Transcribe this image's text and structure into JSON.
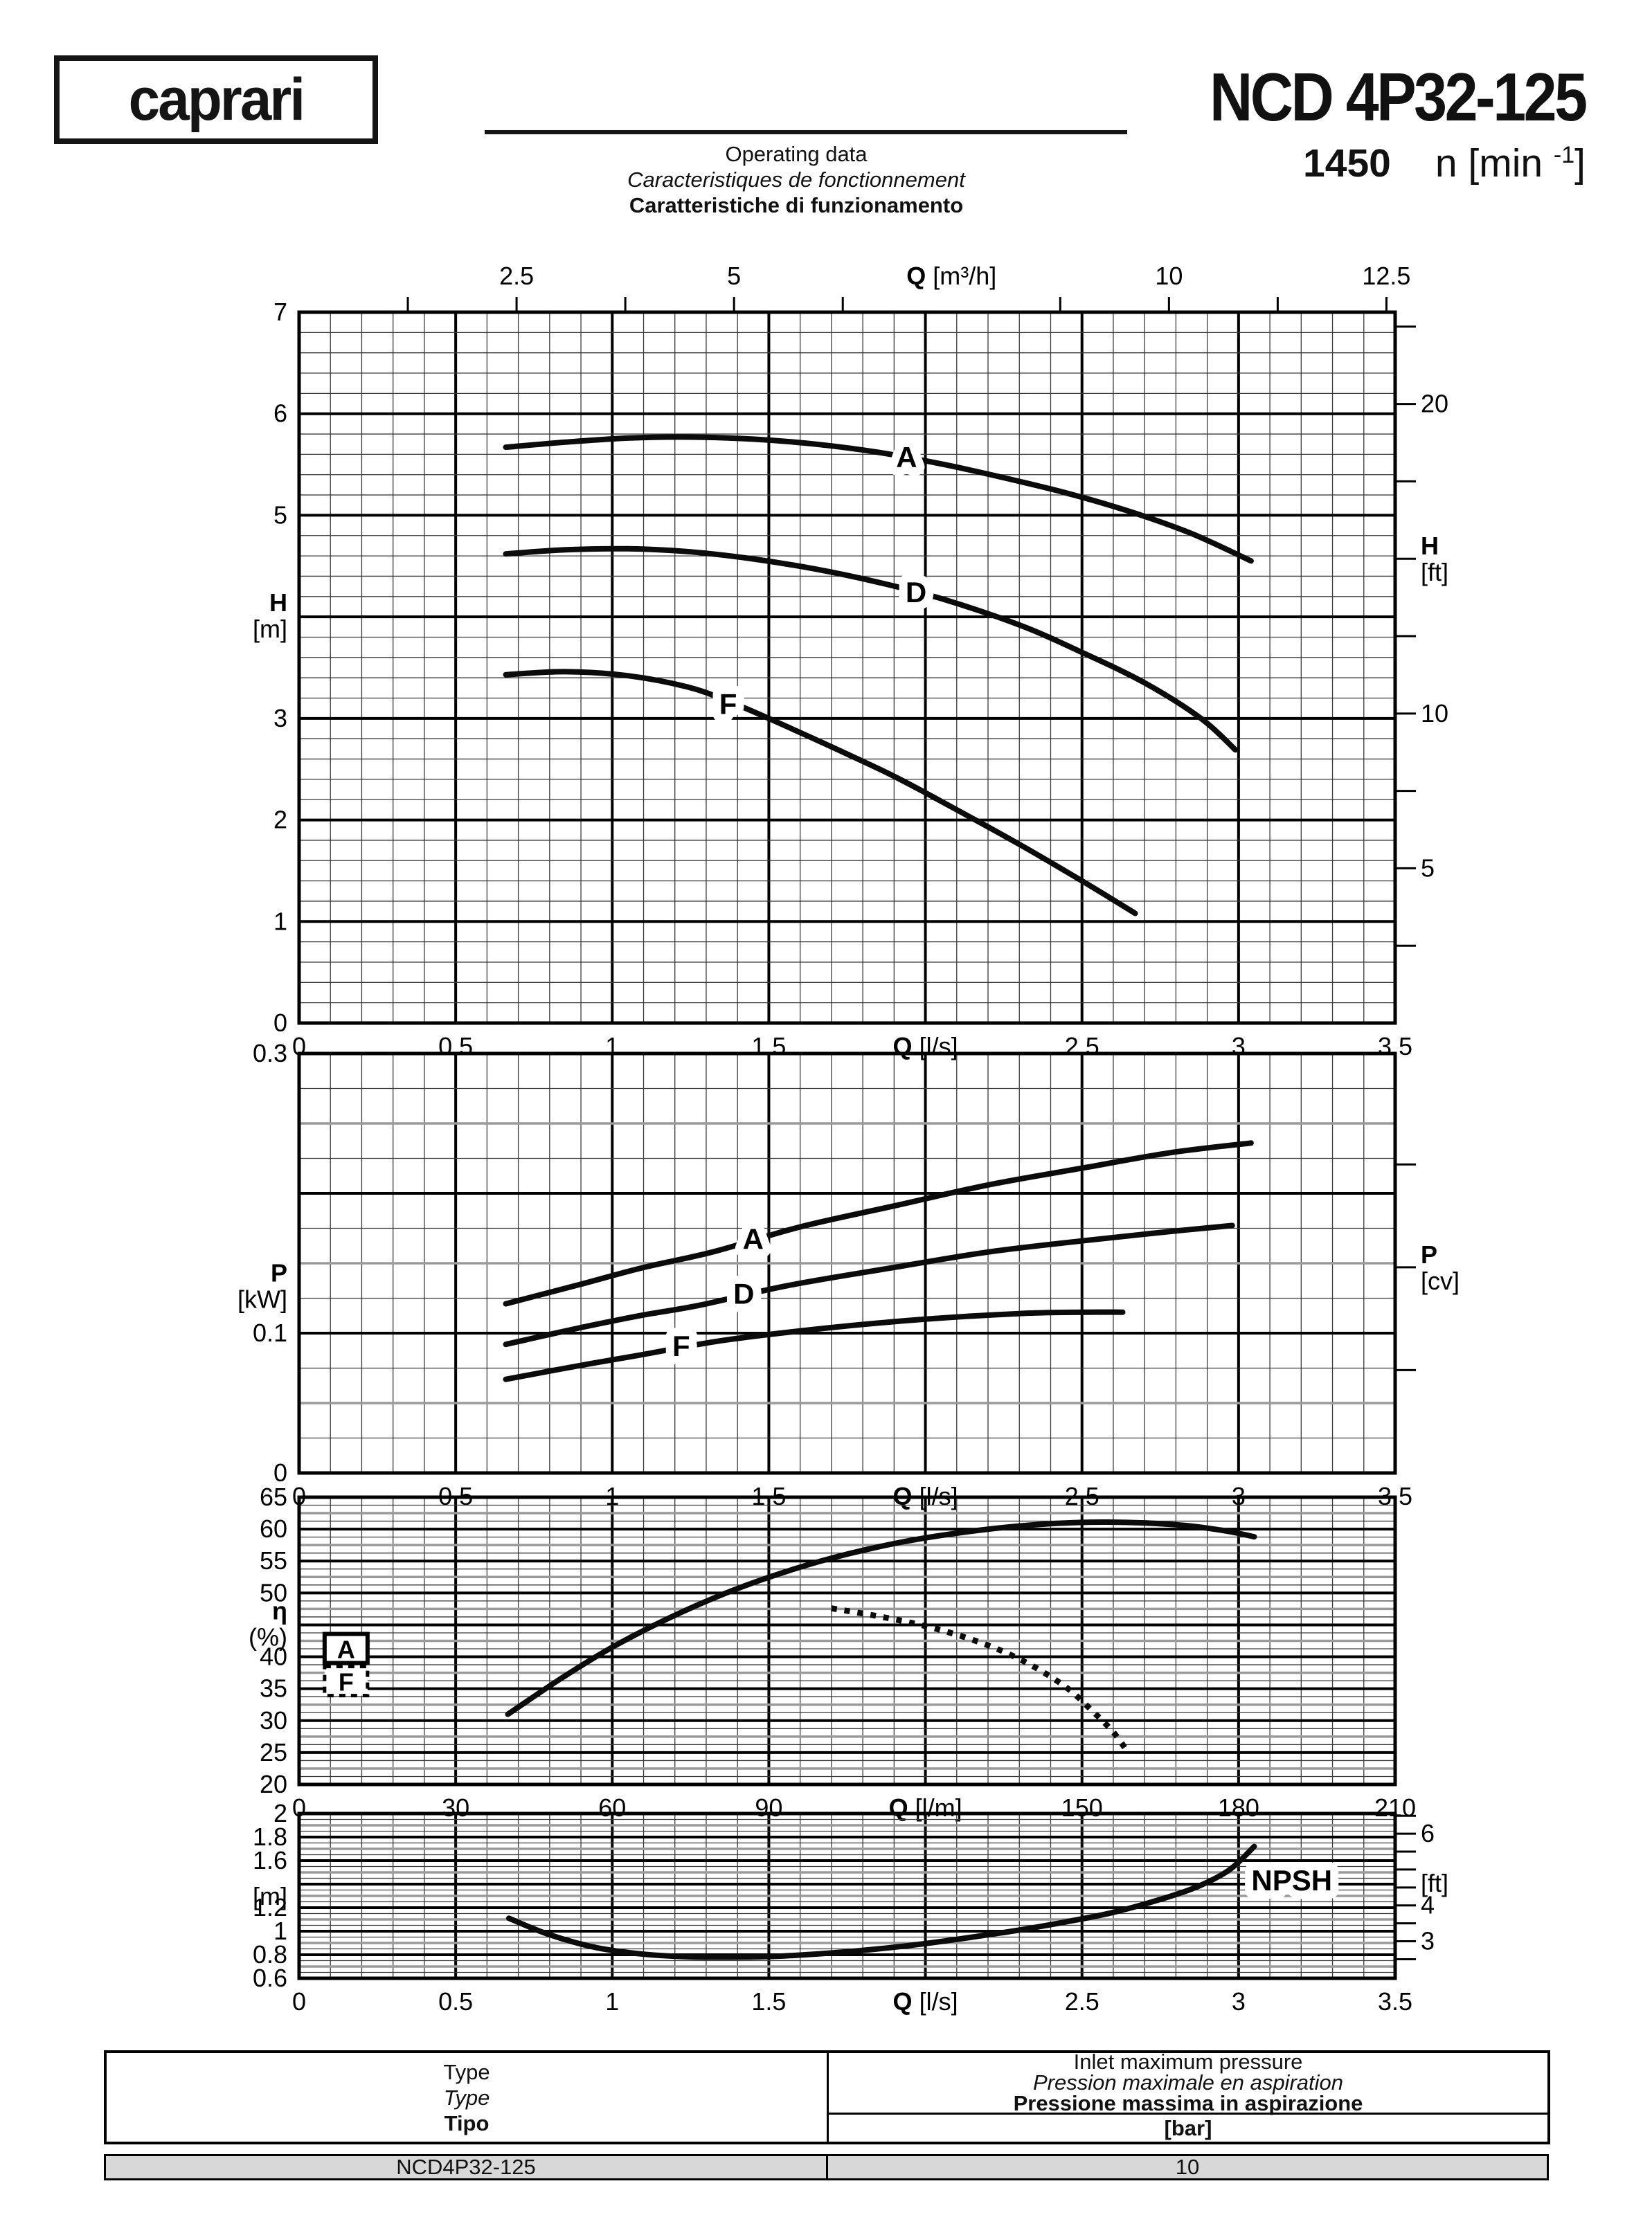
{
  "header": {
    "logo_text": "caprari",
    "title": "NCD 4P32-125",
    "speed_value": "1450",
    "speed_unit": {
      "pre": "n [min ",
      "sup": "-1",
      "post": "]"
    },
    "operating_data": [
      "Operating data",
      "Caracteristiques de fonctionnement",
      "Caratteristiche di funzionamento"
    ]
  },
  "chart_data": [
    {
      "id": "head_flow",
      "type": "line",
      "title": "Head vs flow",
      "x_axis": {
        "min": 0,
        "max": 3.5,
        "labels": [
          {
            "v": 0,
            "t": "0"
          },
          {
            "v": 0.5,
            "t": "0.5"
          },
          {
            "v": 1,
            "t": "1"
          },
          {
            "v": 1.5,
            "t": "1.5"
          },
          {
            "v": 2,
            "q": "Q",
            "u": "[l/s]"
          },
          {
            "v": 2.5,
            "t": "2.5"
          },
          {
            "v": 3,
            "t": "3"
          },
          {
            "v": 3.5,
            "t": "3.5"
          }
        ]
      },
      "top_axis": {
        "min": 0,
        "max": 12.6,
        "tick_step": 1.25,
        "skip_tick": 7.5,
        "labels": [
          {
            "v": 2.5,
            "t": "2.5"
          },
          {
            "v": 5,
            "t": "5"
          },
          {
            "v": 7.5,
            "q": "Q",
            "u": "[m³/h]"
          },
          {
            "v": 10,
            "t": "10"
          },
          {
            "v": 12.5,
            "t": "12.5"
          }
        ]
      },
      "y_axis": {
        "min": 0,
        "max": 7,
        "labels": [
          {
            "v": 7,
            "t": "7"
          },
          {
            "v": 6,
            "t": "6"
          },
          {
            "v": 5,
            "t": "5"
          },
          {
            "v": 4,
            "title": [
              "H",
              "[m]"
            ]
          },
          {
            "v": 3,
            "t": "3"
          },
          {
            "v": 2,
            "t": "2"
          },
          {
            "v": 1,
            "t": "1"
          },
          {
            "v": 0,
            "t": "0"
          }
        ]
      },
      "right_axis": {
        "to_main": 0.3048,
        "tick_min": 2.5,
        "tick_max": 22.5,
        "tick_step": 2.5,
        "labels": [
          {
            "v": 20,
            "t": "20"
          },
          {
            "v": 15,
            "title": [
              "H",
              "[ft]"
            ]
          },
          {
            "v": 10,
            "t": "10"
          },
          {
            "v": 5,
            "t": "5"
          }
        ]
      },
      "series": [
        {
          "name": "A",
          "label_at": [
            1.94,
            5.57
          ],
          "points": [
            [
              0.66,
              5.67
            ],
            [
              0.85,
              5.72
            ],
            [
              1.05,
              5.76
            ],
            [
              1.25,
              5.77
            ],
            [
              1.45,
              5.75
            ],
            [
              1.65,
              5.7
            ],
            [
              1.85,
              5.62
            ],
            [
              2.06,
              5.5
            ],
            [
              2.25,
              5.37
            ],
            [
              2.45,
              5.22
            ],
            [
              2.65,
              5.04
            ],
            [
              2.85,
              4.82
            ],
            [
              3.04,
              4.55
            ]
          ]
        },
        {
          "name": "D",
          "label_at": [
            1.97,
            4.24
          ],
          "points": [
            [
              0.66,
              4.62
            ],
            [
              0.85,
              4.66
            ],
            [
              1.05,
              4.67
            ],
            [
              1.25,
              4.64
            ],
            [
              1.45,
              4.57
            ],
            [
              1.65,
              4.47
            ],
            [
              1.85,
              4.34
            ],
            [
              2.05,
              4.18
            ],
            [
              2.3,
              3.92
            ],
            [
              2.5,
              3.65
            ],
            [
              2.7,
              3.35
            ],
            [
              2.88,
              3.0
            ],
            [
              2.99,
              2.69
            ]
          ]
        },
        {
          "name": "F",
          "label_at": [
            1.37,
            3.14
          ],
          "points": [
            [
              0.66,
              3.43
            ],
            [
              0.85,
              3.46
            ],
            [
              1.05,
              3.42
            ],
            [
              1.24,
              3.31
            ],
            [
              1.37,
              3.17
            ],
            [
              1.5,
              3.0
            ],
            [
              1.7,
              2.72
            ],
            [
              1.9,
              2.43
            ],
            [
              2.1,
              2.1
            ],
            [
              2.3,
              1.76
            ],
            [
              2.5,
              1.4
            ],
            [
              2.67,
              1.08
            ]
          ]
        }
      ]
    },
    {
      "id": "power_flow",
      "type": "line",
      "title": "Power vs flow",
      "x_axis": {
        "min": 0,
        "max": 3.5,
        "labels": [
          {
            "v": 0,
            "t": "0"
          },
          {
            "v": 0.5,
            "t": "0.5"
          },
          {
            "v": 1,
            "t": "1"
          },
          {
            "v": 1.5,
            "t": "1.5"
          },
          {
            "v": 2,
            "q": "Q",
            "u": "[l/s]"
          },
          {
            "v": 2.5,
            "t": "2.5"
          },
          {
            "v": 3,
            "t": "3"
          },
          {
            "v": 3.5,
            "t": "3.5"
          }
        ]
      },
      "y_axis": {
        "min": 0,
        "max": 0.3,
        "labels": [
          {
            "v": 0.3,
            "t": "0.3"
          },
          {
            "v": 0.133,
            "title": [
              "P",
              "[kW]"
            ]
          },
          {
            "v": 0.1,
            "t": "0.1"
          },
          {
            "v": 0,
            "t": "0"
          }
        ]
      },
      "right_axis": {
        "to_main": 0.7355,
        "tick_min": 0.1,
        "tick_max": 0.3,
        "tick_step": 0.1,
        "labels": [
          {
            "v": 0.2,
            "title": [
              "P",
              "[cv]"
            ]
          }
        ]
      },
      "series": [
        {
          "name": "A",
          "label_at": [
            1.45,
            0.167
          ],
          "points": [
            [
              0.66,
              0.121
            ],
            [
              0.9,
              0.135
            ],
            [
              1.1,
              0.147
            ],
            [
              1.32,
              0.158
            ],
            [
              1.6,
              0.176
            ],
            [
              1.9,
              0.191
            ],
            [
              2.2,
              0.206
            ],
            [
              2.5,
              0.218
            ],
            [
              2.78,
              0.229
            ],
            [
              3.04,
              0.236
            ]
          ]
        },
        {
          "name": "D",
          "label_at": [
            1.42,
            0.128
          ],
          "points": [
            [
              0.66,
              0.092
            ],
            [
              0.9,
              0.104
            ],
            [
              1.1,
              0.113
            ],
            [
              1.28,
              0.12
            ],
            [
              1.56,
              0.134
            ],
            [
              1.9,
              0.147
            ],
            [
              2.2,
              0.158
            ],
            [
              2.5,
              0.166
            ],
            [
              2.75,
              0.172
            ],
            [
              2.98,
              0.177
            ]
          ]
        },
        {
          "name": "F",
          "label_at": [
            1.22,
            0.0905
          ],
          "points": [
            [
              0.66,
              0.067
            ],
            [
              0.9,
              0.077
            ],
            [
              1.08,
              0.084
            ],
            [
              1.36,
              0.095
            ],
            [
              1.7,
              0.104
            ],
            [
              2.0,
              0.11
            ],
            [
              2.3,
              0.114
            ],
            [
              2.5,
              0.115
            ],
            [
              2.63,
              0.115
            ]
          ]
        }
      ]
    },
    {
      "id": "efficiency_flow",
      "type": "line",
      "title": "Efficiency vs flow",
      "x_axis": {
        "min": 0,
        "max": 210,
        "labels": [
          {
            "v": 0,
            "t": "0"
          },
          {
            "v": 30,
            "t": "30"
          },
          {
            "v": 60,
            "t": "60"
          },
          {
            "v": 90,
            "t": "90"
          },
          {
            "v": 120,
            "q": "Q",
            "u": "[l/m]"
          },
          {
            "v": 150,
            "t": "150"
          },
          {
            "v": 180,
            "t": "180"
          },
          {
            "v": 210,
            "t": "210"
          }
        ]
      },
      "y_axis": {
        "min": 20,
        "max": 65,
        "labels": [
          {
            "v": 65,
            "t": "65"
          },
          {
            "v": 60,
            "t": "60"
          },
          {
            "v": 55,
            "t": "55"
          },
          {
            "v": 50,
            "t": "50"
          },
          {
            "v": 45,
            "title": [
              "η",
              "(%)"
            ]
          },
          {
            "v": 40,
            "t": "40"
          },
          {
            "v": 35,
            "t": "35"
          },
          {
            "v": 30,
            "t": "30"
          },
          {
            "v": 25,
            "t": "25"
          },
          {
            "v": 20,
            "t": "20"
          }
        ]
      },
      "legend": [
        {
          "t": "A",
          "box": "solid",
          "at": [
            9,
            41.3
          ]
        },
        {
          "t": "F",
          "box": "dotted",
          "at": [
            9,
            36.2
          ]
        }
      ],
      "series": [
        {
          "name": "A",
          "points": [
            [
              40,
              31
            ],
            [
              50,
              36.5
            ],
            [
              60,
              41.5
            ],
            [
              72,
              46.5
            ],
            [
              85,
              51
            ],
            [
              100,
              55
            ],
            [
              115,
              57.9
            ],
            [
              130,
              59.8
            ],
            [
              143,
              60.8
            ],
            [
              155,
              61.1
            ],
            [
              168,
              60.7
            ],
            [
              177,
              59.8
            ],
            [
              183,
              58.8
            ]
          ]
        },
        {
          "name": "F",
          "dotted": true,
          "points": [
            [
              102,
              47.6
            ],
            [
              112,
              46.2
            ],
            [
              122,
              44.4
            ],
            [
              132,
              41.8
            ],
            [
              140,
              38.8
            ],
            [
              147,
              35.2
            ],
            [
              152,
              31.5
            ],
            [
              156,
              28.2
            ],
            [
              159,
              24.8
            ]
          ]
        }
      ]
    },
    {
      "id": "npsh_flow",
      "type": "line",
      "title": "NPSH vs flow",
      "x_axis": {
        "min": 0,
        "max": 3.5,
        "labels": [
          {
            "v": 0,
            "t": "0"
          },
          {
            "v": 0.5,
            "t": "0.5"
          },
          {
            "v": 1,
            "t": "1"
          },
          {
            "v": 1.5,
            "t": "1.5"
          },
          {
            "v": 2,
            "q": "Q",
            "u": "[l/s]"
          },
          {
            "v": 2.5,
            "t": "2.5"
          },
          {
            "v": 3,
            "t": "3"
          },
          {
            "v": 3.5,
            "t": "3.5"
          }
        ]
      },
      "y_axis": {
        "min": 0.6,
        "max": 2,
        "labels": [
          {
            "v": 2,
            "t": "2"
          },
          {
            "v": 1.8,
            "t": "1.8"
          },
          {
            "v": 1.6,
            "t": "1.6"
          },
          {
            "v": 1.4,
            "title": [
              "",
              "[m]"
            ]
          },
          {
            "v": 1.2,
            "t": "1.2"
          },
          {
            "v": 1,
            "t": "1"
          },
          {
            "v": 0.8,
            "t": "0.8"
          },
          {
            "v": 0.6,
            "t": "0.6"
          }
        ]
      },
      "right_axis": {
        "to_main": 0.3048,
        "tick_min": 2.5,
        "tick_max": 6.5,
        "tick_step": 0.5,
        "labels": [
          {
            "v": 6,
            "t": "6"
          },
          {
            "v": 5,
            "title": [
              "",
              "[ft]"
            ]
          },
          {
            "v": 4,
            "t": "4"
          },
          {
            "v": 3,
            "t": "3"
          }
        ]
      },
      "series": [
        {
          "name": "NPSH",
          "label_at": [
            3.17,
            1.43
          ],
          "points": [
            [
              0.67,
              1.11
            ],
            [
              0.8,
              0.97
            ],
            [
              0.95,
              0.86
            ],
            [
              1.1,
              0.805
            ],
            [
              1.25,
              0.782
            ],
            [
              1.4,
              0.78
            ],
            [
              1.55,
              0.79
            ],
            [
              1.7,
              0.815
            ],
            [
              1.85,
              0.85
            ],
            [
              2.0,
              0.895
            ],
            [
              2.15,
              0.95
            ],
            [
              2.3,
              1.01
            ],
            [
              2.45,
              1.08
            ],
            [
              2.6,
              1.16
            ],
            [
              2.75,
              1.27
            ],
            [
              2.87,
              1.38
            ],
            [
              2.97,
              1.52
            ],
            [
              3.05,
              1.72
            ]
          ]
        }
      ]
    }
  ],
  "table": {
    "type_header": [
      "Type",
      "Type",
      "Tipo"
    ],
    "pressure_header": [
      "Inlet maximum pressure",
      "Pression maximale en aspiration",
      "Pressione massima in aspirazione"
    ],
    "unit_label": "[bar]",
    "row": {
      "type": "NCD4P32-125",
      "pressure": "10"
    }
  }
}
